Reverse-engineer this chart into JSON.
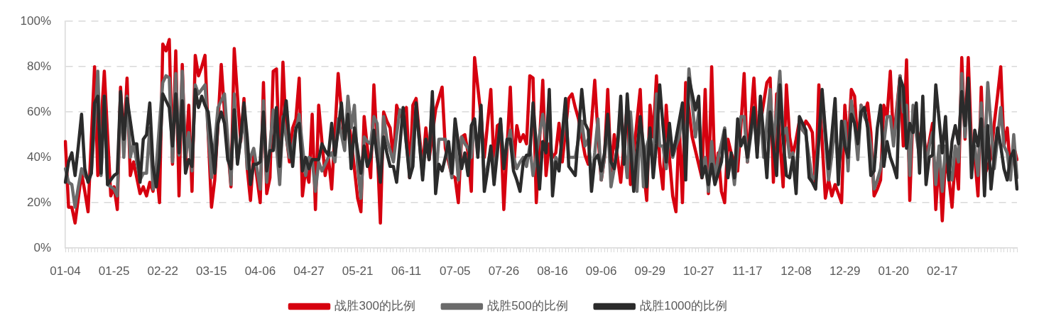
{
  "chart_data": {
    "type": "line",
    "categories": [
      "01-04",
      null,
      null,
      null,
      null,
      null,
      null,
      null,
      null,
      null,
      null,
      null,
      null,
      null,
      null,
      "01-25",
      null,
      null,
      null,
      null,
      null,
      null,
      null,
      null,
      null,
      null,
      null,
      null,
      null,
      null,
      "02-22",
      null,
      null,
      null,
      null,
      null,
      null,
      null,
      null,
      null,
      null,
      null,
      null,
      null,
      null,
      "03-15",
      null,
      null,
      null,
      null,
      null,
      null,
      null,
      null,
      null,
      null,
      null,
      null,
      null,
      null,
      "04-06",
      null,
      null,
      null,
      null,
      null,
      null,
      null,
      null,
      null,
      null,
      null,
      null,
      null,
      null,
      "04-27",
      null,
      null,
      null,
      null,
      null,
      null,
      null,
      null,
      null,
      null,
      null,
      null,
      null,
      null,
      "05-21",
      null,
      null,
      null,
      null,
      null,
      null,
      null,
      null,
      null,
      null,
      null,
      null,
      null,
      null,
      "06-11",
      null,
      null,
      null,
      null,
      null,
      null,
      null,
      null,
      null,
      null,
      null,
      null,
      null,
      null,
      "07-05",
      null,
      null,
      null,
      null,
      null,
      null,
      null,
      null,
      null,
      null,
      null,
      null,
      null,
      null,
      "07-26",
      null,
      null,
      null,
      null,
      null,
      null,
      null,
      null,
      null,
      null,
      null,
      null,
      null,
      null,
      "08-16",
      null,
      null,
      null,
      null,
      null,
      null,
      null,
      null,
      null,
      null,
      null,
      null,
      null,
      null,
      "09-06",
      null,
      null,
      null,
      null,
      null,
      null,
      null,
      null,
      null,
      null,
      null,
      null,
      null,
      null,
      "09-29",
      null,
      null,
      null,
      null,
      null,
      null,
      null,
      null,
      null,
      null,
      null,
      null,
      null,
      null,
      "10-27",
      null,
      null,
      null,
      null,
      null,
      null,
      null,
      null,
      null,
      null,
      null,
      null,
      null,
      null,
      "11-17",
      null,
      null,
      null,
      null,
      null,
      null,
      null,
      null,
      null,
      null,
      null,
      null,
      null,
      null,
      "12-08",
      null,
      null,
      null,
      null,
      null,
      null,
      null,
      null,
      null,
      null,
      null,
      null,
      null,
      null,
      "12-29",
      null,
      null,
      null,
      null,
      null,
      null,
      null,
      null,
      null,
      null,
      null,
      null,
      null,
      null,
      "01-20",
      null,
      null,
      null,
      null,
      null,
      null,
      null,
      null,
      null,
      null,
      null,
      null,
      null,
      null,
      "02-17",
      null,
      null,
      null,
      null,
      null,
      null,
      null,
      null,
      null,
      null,
      null,
      null,
      null,
      null,
      null,
      null,
      null,
      null,
      null,
      null,
      null,
      null,
      null
    ],
    "ylim": [
      0,
      100
    ],
    "yticks": [
      {
        "value": 0,
        "label": "0%"
      },
      {
        "value": 20,
        "label": "20%"
      },
      {
        "value": 40,
        "label": "40%"
      },
      {
        "value": 60,
        "label": "60%"
      },
      {
        "value": 80,
        "label": "80%"
      },
      {
        "value": 100,
        "label": "100%"
      }
    ],
    "grid": "y",
    "legend": "bottom",
    "series": [
      {
        "name": "战胜300的比例",
        "color": "#d6000f",
        "values": [
          47,
          18,
          18,
          11,
          22,
          33,
          25,
          16,
          48,
          80,
          32,
          55,
          78,
          50,
          23,
          27,
          17,
          71,
          46,
          75,
          32,
          38,
          31,
          24,
          27,
          23,
          29,
          25,
          35,
          20,
          90,
          87,
          92,
          37,
          87,
          23,
          81,
          36,
          63,
          25,
          85,
          76,
          80,
          85,
          50,
          18,
          30,
          55,
          81,
          60,
          45,
          27,
          88,
          67,
          47,
          66,
          35,
          21,
          42,
          31,
          20,
          73,
          24,
          31,
          78,
          79,
          35,
          82,
          50,
          38,
          53,
          57,
          75,
          23,
          35,
          29,
          59,
          17,
          63,
          47,
          32,
          40,
          26,
          51,
          77,
          61,
          46,
          59,
          48,
          35,
          22,
          16,
          58,
          44,
          31,
          72,
          45,
          11,
          60,
          56,
          53,
          39,
          63,
          58,
          60,
          62,
          31,
          63,
          66,
          50,
          35,
          53,
          39,
          50,
          61,
          66,
          71,
          44,
          38,
          32,
          31,
          20,
          49,
          50,
          42,
          25,
          84,
          71,
          58,
          40,
          55,
          70,
          36,
          54,
          55,
          17,
          44,
          71,
          35,
          54,
          47,
          50,
          46,
          76,
          75,
          20,
          47,
          74,
          32,
          46,
          40,
          42,
          55,
          38,
          52,
          66,
          68,
          62,
          57,
          49,
          41,
          37,
          55,
          74,
          50,
          30,
          40,
          70,
          34,
          50,
          40,
          29,
          46,
          63,
          28,
          42,
          56,
          70,
          35,
          21,
          63,
          49,
          76,
          38,
          26,
          63,
          40,
          23,
          16,
          55,
          20,
          73,
          61,
          49,
          43,
          37,
          31,
          70,
          24,
          80,
          31,
          42,
          25,
          20,
          48,
          42,
          38,
          34,
          54,
          77,
          38,
          56,
          75,
          48,
          55,
          64,
          73,
          75,
          29,
          68,
          48,
          27,
          72,
          49,
          41,
          48,
          56,
          52,
          56,
          54,
          51,
          27,
          72,
          47,
          22,
          30,
          23,
          28,
          24,
          20,
          63,
          45,
          70,
          67,
          45,
          63,
          59,
          64,
          51,
          23,
          26,
          30,
          63,
          58,
          78,
          47,
          62,
          76,
          45,
          83,
          21,
          61,
          55,
          45,
          57,
          40,
          47,
          55,
          17,
          40,
          12,
          40,
          31,
          18,
          40,
          26,
          84,
          48,
          84,
          45,
          40,
          23,
          71,
          32,
          36,
          40,
          55,
          67,
          80,
          45,
          53,
          34,
          45,
          39
        ]
      },
      {
        "name": "战胜500的比例",
        "color": "#6b6b6b",
        "values": [
          35,
          29,
          28,
          18,
          27,
          35,
          32,
          30,
          33,
          55,
          78,
          32,
          67,
          28,
          27,
          26,
          23,
          68,
          40,
          67,
          40,
          46,
          38,
          30,
          33,
          33,
          53,
          26,
          36,
          55,
          73,
          76,
          75,
          38,
          77,
          41,
          78,
          40,
          51,
          34,
          72,
          68,
          70,
          72,
          51,
          31,
          46,
          62,
          65,
          68,
          48,
          28,
          68,
          38,
          48,
          58,
          35,
          40,
          44,
          35,
          26,
          65,
          29,
          45,
          61,
          45,
          28,
          58,
          49,
          40,
          45,
          52,
          59,
          45,
          32,
          40,
          39,
          25,
          38,
          34,
          37,
          40,
          42,
          38,
          57,
          50,
          43,
          67,
          53,
          63,
          36,
          22,
          49,
          47,
          46,
          58,
          55,
          32,
          58,
          48,
          43,
          38,
          50,
          61,
          59,
          46,
          33,
          47,
          62,
          47,
          32,
          48,
          40,
          66,
          30,
          48,
          48,
          48,
          40,
          31,
          49,
          30,
          49,
          46,
          44,
          40,
          56,
          42,
          60,
          30,
          36,
          44,
          35,
          44,
          55,
          37,
          45,
          52,
          40,
          35,
          38,
          40,
          36,
          45,
          32,
          41,
          50,
          59,
          48,
          63,
          30,
          40,
          37,
          48,
          60,
          40,
          40,
          40,
          48,
          56,
          45,
          48,
          30,
          42,
          57,
          30,
          40,
          56,
          27,
          35,
          45,
          60,
          45,
          31,
          60,
          42,
          25,
          55,
          27,
          45,
          50,
          35,
          68,
          45,
          45,
          35,
          52,
          40,
          45,
          49,
          60,
          40,
          79,
          64,
          49,
          60,
          33,
          40,
          25,
          47,
          30,
          40,
          46,
          53,
          32,
          40,
          28,
          43,
          58,
          58,
          38,
          49,
          60,
          42,
          60,
          40,
          55,
          70,
          45,
          61,
          78,
          50,
          53,
          40,
          42,
          30,
          55,
          52,
          50,
          40,
          30,
          32,
          49,
          66,
          48,
          30,
          41,
          55,
          35,
          45,
          56,
          34,
          65,
          55,
          39,
          63,
          58,
          55,
          45,
          26,
          30,
          35,
          46,
          58,
          58,
          45,
          60,
          76,
          60,
          63,
          32,
          63,
          50,
          40,
          60,
          35,
          45,
          51,
          28,
          45,
          25,
          45,
          35,
          30,
          45,
          38,
          77,
          49,
          70,
          40,
          45,
          32,
          64,
          38,
          73,
          54,
          35,
          48,
          62,
          45,
          42,
          30,
          50,
          31
        ]
      },
      {
        "name": "战胜1000的比例",
        "color": "#2b2b2b",
        "values": [
          29,
          38,
          42,
          32,
          45,
          59,
          35,
          29,
          33,
          64,
          67,
          33,
          67,
          28,
          30,
          32,
          33,
          69,
          48,
          66,
          56,
          46,
          46,
          29,
          48,
          50,
          64,
          36,
          27,
          40,
          68,
          65,
          62,
          45,
          68,
          42,
          65,
          33,
          39,
          36,
          70,
          62,
          67,
          63,
          60,
          46,
          33,
          55,
          60,
          55,
          39,
          35,
          61,
          37,
          49,
          64,
          49,
          28,
          37,
          37,
          38,
          60,
          34,
          43,
          43,
          62,
          36,
          55,
          65,
          47,
          36,
          53,
          55,
          34,
          40,
          35,
          39,
          39,
          39,
          46,
          43,
          41,
          55,
          41,
          52,
          64,
          48,
          59,
          35,
          53,
          43,
          33,
          45,
          36,
          40,
          52,
          40,
          29,
          49,
          42,
          36,
          36,
          29,
          45,
          62,
          46,
          31,
          36,
          64,
          47,
          30,
          48,
          39,
          69,
          24,
          37,
          34,
          40,
          47,
          33,
          57,
          46,
          35,
          42,
          32,
          54,
          57,
          40,
          63,
          25,
          34,
          45,
          28,
          42,
          57,
          35,
          48,
          48,
          34,
          30,
          25,
          38,
          41,
          41,
          64,
          45,
          26,
          47,
          42,
          70,
          23,
          38,
          34,
          50,
          66,
          36,
          34,
          32,
          51,
          70,
          55,
          52,
          25,
          39,
          41,
          34,
          42,
          59,
          38,
          35,
          45,
          67,
          37,
          68,
          45,
          25,
          42,
          58,
          45,
          27,
          53,
          31,
          46,
          72,
          54,
          38,
          55,
          41,
          48,
          56,
          64,
          30,
          75,
          68,
          61,
          67,
          31,
          36,
          28,
          37,
          28,
          33,
          38,
          52,
          31,
          42,
          31,
          57,
          45,
          49,
          40,
          51,
          62,
          40,
          67,
          49,
          31,
          60,
          45,
          32,
          72,
          48,
          32,
          31,
          40,
          24,
          58,
          55,
          52,
          31,
          29,
          26,
          48,
          70,
          52,
          35,
          50,
          66,
          28,
          56,
          45,
          40,
          59,
          55,
          46,
          60,
          62,
          53,
          32,
          34,
          53,
          63,
          36,
          47,
          40,
          36,
          31,
          75,
          71,
          44,
          55,
          51,
          64,
          33,
          67,
          28,
          40,
          41,
          72,
          57,
          42,
          58,
          30,
          47,
          54,
          46,
          69,
          54,
          75,
          31,
          52,
          45,
          57,
          23,
          54,
          26,
          40,
          53,
          45,
          35,
          30,
          40,
          43,
          26
        ]
      }
    ]
  }
}
